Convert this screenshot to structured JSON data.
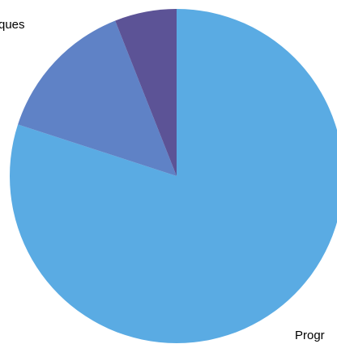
{
  "chart_data": {
    "type": "pie",
    "start_angle_deg": 0,
    "direction": "clockwise",
    "slices": [
      {
        "label": "Progr",
        "value": 80.0,
        "color": "#5aabe3"
      },
      {
        "label": "",
        "value": 14.0,
        "color": "#5f82c6"
      },
      {
        "label": "",
        "value": 6.0,
        "color": "#5c5396"
      }
    ],
    "visible_labels": [
      {
        "text": "ques"
      },
      {
        "text": "Progr"
      }
    ],
    "legend": "none",
    "title": ""
  }
}
